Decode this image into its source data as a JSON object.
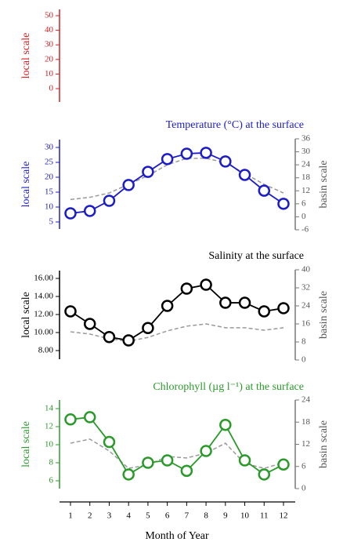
{
  "chart_data": [
    {
      "type": "line",
      "ylabel": "local scale",
      "color": "#d42020",
      "ylim": [
        0,
        50
      ],
      "yticks": [
        0,
        10,
        20,
        30,
        40,
        50
      ],
      "series": []
    },
    {
      "type": "line",
      "title": "Temperature (°C) at the surface",
      "ylabel": "local scale",
      "y2label": "basin scale",
      "color": "#1c1cc8",
      "ylim": [
        5,
        30
      ],
      "yticks": [
        5,
        10,
        15,
        20,
        25,
        30
      ],
      "y2lim": [
        -6,
        36
      ],
      "y2ticks": [
        -6,
        0,
        6,
        12,
        18,
        24,
        30,
        36
      ],
      "series": [
        {
          "color": "#1c1cc8",
          "values": [
            7.9,
            8.7,
            12.1,
            17.4,
            21.8,
            26.1,
            27.9,
            28.2,
            25.3,
            20.8,
            15.5,
            11.1
          ]
        },
        {
          "color": "#999999",
          "axis": "y2",
          "dashed": true,
          "values": [
            8,
            9,
            11,
            15,
            19,
            24,
            27,
            27,
            25,
            20,
            15,
            11
          ]
        }
      ]
    },
    {
      "type": "line",
      "title": "Salinity at the surface",
      "ylabel": "local scale",
      "y2label": "basin scale",
      "color": "#000000",
      "ylim": [
        8,
        16
      ],
      "yticks": [
        {
          "value": 8,
          "label": "8.00"
        },
        {
          "value": 10,
          "label": "10.00"
        },
        {
          "value": 12,
          "label": "12.00"
        },
        {
          "value": 14,
          "label": "14.00"
        },
        {
          "value": 16,
          "label": "16.00"
        }
      ],
      "y2lim": [
        0,
        40
      ],
      "y2ticks": [
        0,
        8,
        16,
        24,
        32,
        40
      ],
      "series": [
        {
          "color": "#000000",
          "values": [
            12.35,
            10.96,
            9.5,
            9.13,
            10.5,
            12.96,
            14.87,
            15.3,
            13.3,
            13.3,
            12.35,
            12.7
          ]
        },
        {
          "color": "#999999",
          "axis": "y2",
          "dashed": true,
          "values": [
            12.5,
            11.5,
            9.4,
            8.3,
            10,
            12.9,
            15,
            16,
            14.3,
            14.3,
            13.2,
            14.3
          ]
        }
      ]
    },
    {
      "type": "line",
      "title": "Chlorophyll (µg l⁻¹) at the surface",
      "ylabel": "local scale",
      "y2label": "basin scale",
      "color": "#2a9a2a",
      "ylim": [
        6,
        14
      ],
      "yticks": [
        6,
        8,
        10,
        12,
        14
      ],
      "y2lim": [
        0,
        24
      ],
      "y2ticks": [
        0,
        6,
        12,
        18,
        24
      ],
      "x": [
        1,
        2,
        3,
        4,
        5,
        6,
        7,
        8,
        9,
        10,
        11,
        12
      ],
      "xlim": [
        1,
        12
      ],
      "xticks": [
        1,
        2,
        3,
        4,
        5,
        6,
        7,
        8,
        9,
        10,
        11,
        12
      ],
      "xlabel": "Month of Year",
      "series": [
        {
          "color": "#2a9a2a",
          "values": [
            12.8,
            13.05,
            10.3,
            6.7,
            8.0,
            8.26,
            7.1,
            9.3,
            12.2,
            8.26,
            6.7,
            7.8
          ]
        },
        {
          "color": "#999999",
          "axis": "y2",
          "dashed": true,
          "values": [
            12.3,
            13.4,
            10.2,
            5.5,
            6.4,
            8.7,
            8.3,
            9.6,
            12.3,
            6.8,
            5.5,
            7
          ]
        }
      ]
    }
  ]
}
